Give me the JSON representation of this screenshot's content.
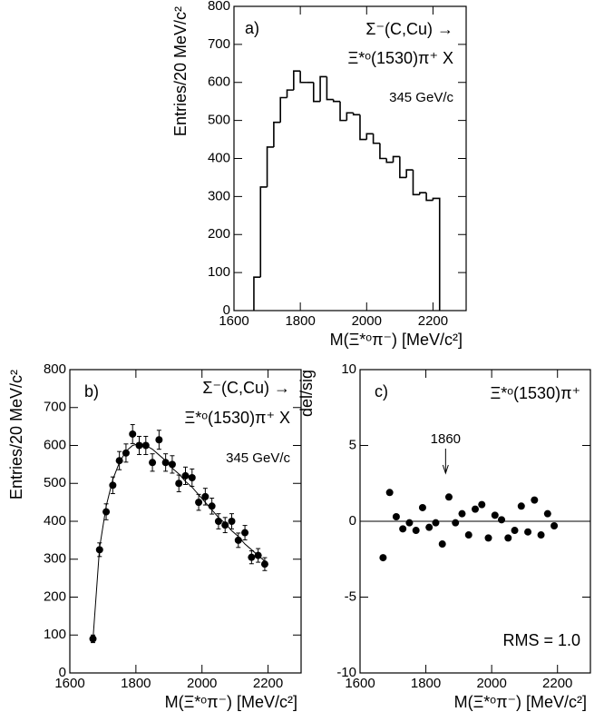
{
  "chart_data": [
    {
      "type": "histogram",
      "label": "a)",
      "annotations": [
        "Σ⁻(C,Cu) →",
        "Ξ*ᵒ(1530)π⁺ X",
        "345 GeV/c"
      ],
      "xlabel": "M(Ξ*ᵒπ⁻)  [MeV/c²]",
      "ylabel": "Entries/20 MeV/c²",
      "bins": [
        1660,
        1680,
        1700,
        1720,
        1740,
        1760,
        1780,
        1800,
        1820,
        1840,
        1860,
        1880,
        1900,
        1920,
        1940,
        1960,
        1980,
        2000,
        2020,
        2040,
        2060,
        2080,
        2100,
        2120,
        2140,
        2160,
        2180,
        2200,
        2220
      ],
      "values": [
        88,
        325,
        430,
        495,
        560,
        580,
        630,
        600,
        600,
        550,
        615,
        555,
        550,
        500,
        520,
        515,
        450,
        465,
        440,
        400,
        390,
        405,
        350,
        370,
        305,
        310,
        290,
        295
      ],
      "color": "#000000",
      "xlim": [
        1600,
        2300
      ],
      "ylim": [
        0,
        800
      ],
      "xticks": [
        1600,
        1800,
        2000,
        2200
      ],
      "yticks": [
        0,
        100,
        200,
        300,
        400,
        500,
        600,
        700,
        800
      ]
    },
    {
      "type": "errorbar",
      "label": "b)",
      "annotations": [
        "Σ⁻(C,Cu) →",
        "Ξ*ᵒ(1530)π⁺ X",
        "345 GeV/c"
      ],
      "xlabel": "M(Ξ*ᵒπ⁻)  [MeV/c²]",
      "ylabel": "Entries/20 MeV/c²",
      "x": [
        1670,
        1690,
        1710,
        1730,
        1750,
        1770,
        1790,
        1810,
        1830,
        1850,
        1870,
        1890,
        1910,
        1930,
        1950,
        1970,
        1990,
        2010,
        2030,
        2050,
        2070,
        2090,
        2110,
        2130,
        2150,
        2170,
        2190
      ],
      "values": [
        90,
        325,
        425,
        495,
        560,
        580,
        630,
        600,
        600,
        555,
        615,
        555,
        550,
        500,
        520,
        515,
        450,
        465,
        440,
        400,
        390,
        400,
        350,
        370,
        305,
        310,
        287
      ],
      "errors": [
        10,
        18,
        21,
        22,
        24,
        24,
        25,
        24,
        24,
        23,
        25,
        23,
        23,
        22,
        23,
        23,
        21,
        22,
        21,
        20,
        20,
        20,
        19,
        19,
        17,
        18,
        17
      ],
      "curve": {
        "x": [
          1670,
          1690,
          1710,
          1730,
          1750,
          1770,
          1790,
          1810,
          1830,
          1850,
          1870,
          1890,
          1910,
          1930,
          1950,
          1970,
          1990,
          2010,
          2030,
          2050,
          2070,
          2090,
          2110,
          2130,
          2150,
          2170,
          2190
        ],
        "values": [
          88,
          330,
          440,
          510,
          555,
          585,
          600,
          605,
          600,
          590,
          575,
          560,
          540,
          525,
          505,
          490,
          470,
          450,
          430,
          410,
          395,
          375,
          360,
          340,
          325,
          310,
          295
        ]
      },
      "color": "#000000",
      "xlim": [
        1600,
        2300
      ],
      "ylim": [
        0,
        800
      ],
      "xticks": [
        1600,
        1800,
        2000,
        2200
      ],
      "yticks": [
        0,
        100,
        200,
        300,
        400,
        500,
        600,
        700,
        800
      ]
    },
    {
      "type": "scatter",
      "label": "c)",
      "annotations": [
        "Ξ*ᵒ(1530)π⁺",
        "RMS = 1.0"
      ],
      "arrow": {
        "x": 1860
      },
      "xlabel": "M(Ξ*ᵒπ⁻)  [MeV/c²]",
      "ylabel": "del/sig",
      "x": [
        1670,
        1690,
        1710,
        1730,
        1750,
        1770,
        1790,
        1810,
        1830,
        1850,
        1870,
        1890,
        1910,
        1930,
        1950,
        1970,
        1990,
        2010,
        2030,
        2050,
        2070,
        2090,
        2110,
        2130,
        2150,
        2170,
        2190
      ],
      "values": [
        -2.4,
        1.9,
        0.3,
        -0.5,
        -0.1,
        -0.6,
        0.9,
        -0.4,
        -0.1,
        -1.5,
        1.6,
        -0.1,
        0.5,
        -0.9,
        0.8,
        1.1,
        -1.1,
        0.4,
        0.1,
        -1.1,
        -0.6,
        1.0,
        -0.7,
        1.4,
        -0.9,
        0.5,
        -0.3
      ],
      "hline": 0,
      "color": "#000000",
      "xlim": [
        1600,
        2300
      ],
      "ylim": [
        -10,
        10
      ],
      "xticks": [
        1600,
        1800,
        2000,
        2200
      ],
      "yticks": [
        -10,
        -5,
        0,
        5,
        10
      ]
    }
  ]
}
